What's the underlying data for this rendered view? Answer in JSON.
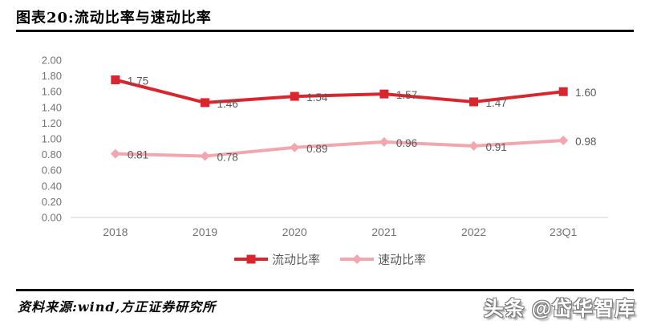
{
  "header": {
    "title": "图表20:流动比率与速动比率"
  },
  "chart_data": {
    "type": "line",
    "title": "图表20:流动比率与速动比率",
    "categories": [
      "2018",
      "2019",
      "2020",
      "2021",
      "2022",
      "23Q1"
    ],
    "series": [
      {
        "name": "流动比率",
        "values": [
          1.75,
          1.46,
          1.54,
          1.57,
          1.47,
          1.6
        ],
        "color": "#d9262e",
        "marker": "square"
      },
      {
        "name": "速动比率",
        "values": [
          0.81,
          0.78,
          0.89,
          0.96,
          0.91,
          0.98
        ],
        "color": "#f1a7ad",
        "marker": "diamond"
      }
    ],
    "ylim": [
      0,
      2.0
    ],
    "y_ticks": [
      "0.00",
      "0.20",
      "0.40",
      "0.60",
      "0.80",
      "1.00",
      "1.20",
      "1.40",
      "1.60",
      "1.80",
      "2.00"
    ],
    "data_labels": true,
    "grid": false,
    "legend_position": "bottom",
    "colors": {
      "axis_line": "#d9d9d9",
      "tick_label": "#737373",
      "data_label": "#595959",
      "legend_label": "#595959"
    }
  },
  "footer": {
    "source": "资料来源:wind,方正证券研究所",
    "watermark": "头条 @岱华智库"
  }
}
